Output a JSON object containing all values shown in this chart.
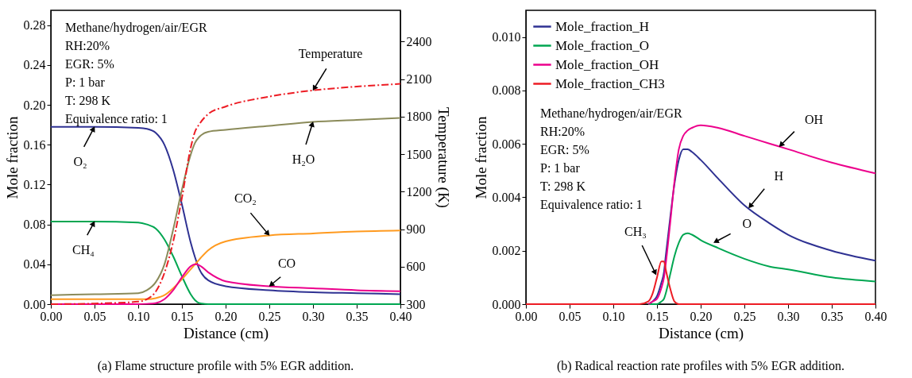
{
  "chart_data": [
    {
      "type": "line",
      "xlabel": "Distance (cm)",
      "ylabel": "Mole fraction",
      "y2label": "Temperature (K)",
      "x": [
        0,
        0.05,
        0.1,
        0.11,
        0.12,
        0.13,
        0.14,
        0.15,
        0.16,
        0.165,
        0.17,
        0.18,
        0.2,
        0.25,
        0.3,
        0.35,
        0.4
      ],
      "xlim": [
        0,
        0.4
      ],
      "xticks": [
        {
          "value": 0,
          "label": "0.00"
        },
        {
          "value": 0.05,
          "label": "0.05"
        },
        {
          "value": 0.1,
          "label": "0.10"
        },
        {
          "value": 0.15,
          "label": "0.15"
        },
        {
          "value": 0.2,
          "label": "0.20"
        },
        {
          "value": 0.25,
          "label": "0.25"
        },
        {
          "value": 0.3,
          "label": "0.30"
        },
        {
          "value": 0.35,
          "label": "0.35"
        },
        {
          "value": 0.4,
          "label": "0.40"
        }
      ],
      "ylim": [
        0,
        0.295
      ],
      "yticks": [
        {
          "value": 0,
          "label": "0.00"
        },
        {
          "value": 0.04,
          "label": "0.04"
        },
        {
          "value": 0.08,
          "label": "0.08"
        },
        {
          "value": 0.12,
          "label": "0.12"
        },
        {
          "value": 0.16,
          "label": "0.16"
        },
        {
          "value": 0.2,
          "label": "0.20"
        },
        {
          "value": 0.24,
          "label": "0.24"
        },
        {
          "value": 0.28,
          "label": "0.28"
        }
      ],
      "y2lim": [
        300,
        2650
      ],
      "y2ticks": [
        300,
        600,
        900,
        1200,
        1500,
        1800,
        2100,
        2400
      ],
      "series": [
        {
          "name": "O₂",
          "color": "#2e3192",
          "values": [
            0.178,
            0.178,
            0.177,
            0.176,
            0.172,
            0.16,
            0.135,
            0.1,
            0.062,
            0.047,
            0.035,
            0.024,
            0.018,
            0.014,
            0.012,
            0.011,
            0.01
          ]
        },
        {
          "name": "CH₄",
          "color": "#00a651",
          "values": [
            0.083,
            0.083,
            0.082,
            0.08,
            0.076,
            0.065,
            0.048,
            0.028,
            0.01,
            0.004,
            0.001,
            0,
            0,
            0,
            0,
            0,
            0
          ]
        },
        {
          "name": "H₂O",
          "color": "#8b8b5a",
          "values": [
            0.009,
            0.01,
            0.011,
            0.014,
            0.022,
            0.04,
            0.075,
            0.115,
            0.15,
            0.162,
            0.168,
            0.173,
            0.175,
            0.179,
            0.183,
            0.185,
            0.187
          ]
        },
        {
          "name": "CO₂",
          "color": "#ff9a1f",
          "values": [
            0.005,
            0.005,
            0.005,
            0.005,
            0.006,
            0.009,
            0.016,
            0.025,
            0.035,
            0.04,
            0.045,
            0.054,
            0.063,
            0.069,
            0.071,
            0.073,
            0.074
          ]
        },
        {
          "name": "CO",
          "color": "#ec008c",
          "values": [
            0,
            0,
            0,
            0.0003,
            0.001,
            0.005,
            0.014,
            0.027,
            0.038,
            0.04,
            0.039,
            0.032,
            0.023,
            0.018,
            0.016,
            0.014,
            0.013
          ]
        },
        {
          "name": "Temperature",
          "color": "#ed1c24",
          "axis": "y2",
          "line_style": "dashed",
          "values": [
            300,
            305,
            320,
            340,
            400,
            550,
            800,
            1150,
            1550,
            1680,
            1740,
            1820,
            1880,
            1960,
            2010,
            2040,
            2062
          ]
        }
      ],
      "annotations": [
        "Methane/hydrogen/air/EGR",
        "RH:20%",
        "EGR: 5%",
        "P: 1 bar",
        "T: 298 K",
        "Equivalence ratio: 1",
        "(a) Flame structure profile with 5% EGR addition."
      ]
    },
    {
      "type": "line",
      "xlabel": "Distance (cm)",
      "ylabel": "Mole fraction",
      "legend": "top left",
      "x": [
        0,
        0.13,
        0.14,
        0.145,
        0.15,
        0.155,
        0.158,
        0.16,
        0.165,
        0.17,
        0.175,
        0.18,
        0.185,
        0.19,
        0.2,
        0.22,
        0.25,
        0.28,
        0.3,
        0.35,
        0.4
      ],
      "xlim": [
        0,
        0.4
      ],
      "xticks": [
        {
          "value": 0,
          "label": "0.00"
        },
        {
          "value": 0.05,
          "label": "0.05"
        },
        {
          "value": 0.1,
          "label": "0.10"
        },
        {
          "value": 0.15,
          "label": "0.15"
        },
        {
          "value": 0.2,
          "label": "0.20"
        },
        {
          "value": 0.25,
          "label": "0.25"
        },
        {
          "value": 0.3,
          "label": "0.30"
        },
        {
          "value": 0.35,
          "label": "0.35"
        },
        {
          "value": 0.4,
          "label": "0.40"
        }
      ],
      "ylim": [
        0,
        0.011
      ],
      "yticks": [
        {
          "value": 0,
          "label": "0.000"
        },
        {
          "value": 0.002,
          "label": "0.002"
        },
        {
          "value": 0.004,
          "label": "0.004"
        },
        {
          "value": 0.006,
          "label": "0.006"
        },
        {
          "value": 0.008,
          "label": "0.008"
        },
        {
          "value": 0.01,
          "label": "0.010"
        }
      ],
      "series": [
        {
          "name": "Mole_fraction_H",
          "color": "#2e3192",
          "values": [
            null,
            null,
            0,
            0.0001,
            0.0003,
            0.0008,
            0.0012,
            0.0018,
            0.0032,
            0.0045,
            0.0054,
            0.0058,
            0.0058,
            0.0057,
            0.0054,
            0.0047,
            0.0037,
            0.003,
            0.0026,
            0.002,
            0.00163
          ]
        },
        {
          "name": "Mole_fraction_O",
          "color": "#00a651",
          "values": [
            null,
            null,
            0,
            0,
            0,
            0.0001,
            0.0002,
            0.0004,
            0.0011,
            0.0018,
            0.0023,
            0.0026,
            0.00265,
            0.0026,
            0.0024,
            0.0021,
            0.0017,
            0.0014,
            0.0013,
            0.001,
            0.00085
          ]
        },
        {
          "name": "Mole_fraction_OH",
          "color": "#ec008c",
          "values": [
            null,
            null,
            0,
            0.0001,
            0.0002,
            0.0006,
            0.001,
            0.0015,
            0.003,
            0.0046,
            0.0058,
            0.0063,
            0.0065,
            0.0066,
            0.0067,
            0.0066,
            0.0063,
            0.006,
            0.0058,
            0.0053,
            0.0049
          ]
        },
        {
          "name": "Mole_fraction_CH3",
          "color": "#ed1c24",
          "values": [
            0,
            0,
            0.0001,
            0.0004,
            0.001,
            0.0016,
            0.0016,
            0.0013,
            0.0006,
            0.0001,
            0,
            0,
            0,
            0,
            0,
            0,
            0,
            0,
            0,
            0,
            0
          ]
        }
      ],
      "annotations": [
        "Methane/hydrogen/air/EGR",
        "RH:20%",
        "EGR: 5%",
        "P: 1 bar",
        "T: 298 K",
        "Equivalence ratio: 1",
        {
          "text": "OH",
          "x": 0.29,
          "y": 0.0059
        },
        {
          "text": "H",
          "x": 0.255,
          "y": 0.0036
        },
        {
          "text": "O",
          "x": 0.215,
          "y": 0.0023
        },
        {
          "text": "CH₃",
          "x": 0.149,
          "y": 0.0011
        },
        "(b) Radical reaction rate profiles with 5% EGR addition."
      ]
    }
  ]
}
